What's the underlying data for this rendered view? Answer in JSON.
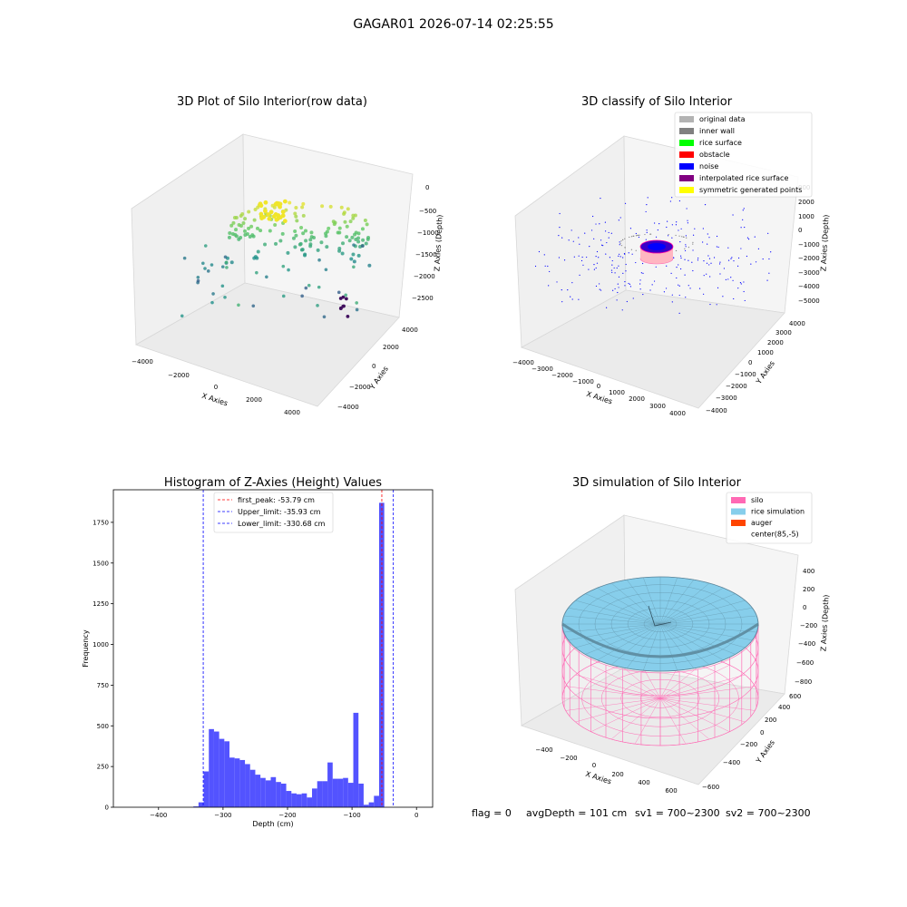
{
  "suptitle": "GAGAR01 2026-07-14 02:25:55",
  "footer": {
    "flag": "flag = 0",
    "avg_depth": "avgDepth = 101 cm",
    "sv1": "sv1 = 700~2300",
    "sv2": "sv2 = 700~2300"
  },
  "panel1": {
    "title": "3D Plot of Silo Interior(row data)",
    "xlabel": "X Axies",
    "ylabel": "Y Axies",
    "zlabel": "Z Axies (Depth)",
    "xticks": [
      "−4000",
      "−2000",
      "0",
      "2000",
      "4000"
    ],
    "yticks": [
      "−4000",
      "−2000",
      "0",
      "2000",
      "4000"
    ],
    "zticks": [
      "0",
      "−500",
      "−1000",
      "−1500",
      "−2000",
      "−2500"
    ]
  },
  "panel2": {
    "title": "3D classify of Silo Interior",
    "xlabel": "X Axies",
    "ylabel": "Y Axies",
    "zlabel": "Z Axies (Depth)",
    "xticks": [
      "−4000",
      "−3000",
      "−2000",
      "−1000",
      "0",
      "1000",
      "2000",
      "3000",
      "4000"
    ],
    "yticks": [
      "−4000",
      "−3000",
      "−2000",
      "−1000",
      "0",
      "1000",
      "2000",
      "3000",
      "4000"
    ],
    "zticks": [
      "2000",
      "1000",
      "0",
      "−1000",
      "−2000",
      "−3000",
      "−4000",
      "−5000"
    ],
    "zticks_partial": "000",
    "legend": [
      {
        "label": "original data",
        "color": "#b3b3b3"
      },
      {
        "label": "inner wall",
        "color": "#808080"
      },
      {
        "label": "rice surface",
        "color": "#00ff00"
      },
      {
        "label": "obstacle",
        "color": "#ff0000"
      },
      {
        "label": "noise",
        "color": "#0000ff"
      },
      {
        "label": "interpolated rice surface",
        "color": "#800080"
      },
      {
        "label": "symmetric generated points",
        "color": "#ffff00"
      }
    ]
  },
  "panel3": {
    "title": "3D simulation of Silo Interior",
    "xlabel": "X Axies",
    "ylabel": "Y Axies",
    "zlabel": "Z Axies (Depth)",
    "xticks": [
      "−400",
      "−200",
      "0",
      "200",
      "400",
      "600"
    ],
    "yticks": [
      "−600",
      "−400",
      "−200",
      "0",
      "200",
      "400",
      "600"
    ],
    "zticks": [
      "400",
      "200",
      "0",
      "−200",
      "−400",
      "−600",
      "−800"
    ],
    "legend": [
      {
        "label": "silo",
        "color": "#ff69b4"
      },
      {
        "label": "rice simulation",
        "color": "#87ceeb"
      },
      {
        "label": "auger",
        "color": "#ff4500"
      },
      {
        "label": "center(85,-5)",
        "color": "#ffffff"
      }
    ]
  },
  "chart_data": {
    "type": "bar",
    "title": "Histogram of Z-Axies (Height) Values",
    "xlabel": "Depth (cm)",
    "ylabel": "Frequency",
    "xlim": [
      -470,
      25
    ],
    "ylim": [
      0,
      1950
    ],
    "xticks": [
      -400,
      -300,
      -200,
      -100,
      0
    ],
    "yticks": [
      0,
      250,
      500,
      750,
      1000,
      1250,
      1500,
      1750
    ],
    "bar_color": "#4a4aff",
    "bin_width": 8,
    "bins": [
      {
        "x0": -346,
        "value": 5
      },
      {
        "x0": -338,
        "value": 30
      },
      {
        "x0": -330,
        "value": 220
      },
      {
        "x0": -322,
        "value": 480
      },
      {
        "x0": -314,
        "value": 465
      },
      {
        "x0": -306,
        "value": 420
      },
      {
        "x0": -298,
        "value": 405
      },
      {
        "x0": -290,
        "value": 305
      },
      {
        "x0": -282,
        "value": 300
      },
      {
        "x0": -274,
        "value": 290
      },
      {
        "x0": -266,
        "value": 265
      },
      {
        "x0": -258,
        "value": 230
      },
      {
        "x0": -250,
        "value": 200
      },
      {
        "x0": -242,
        "value": 180
      },
      {
        "x0": -234,
        "value": 165
      },
      {
        "x0": -226,
        "value": 185
      },
      {
        "x0": -218,
        "value": 155
      },
      {
        "x0": -210,
        "value": 145
      },
      {
        "x0": -202,
        "value": 100
      },
      {
        "x0": -194,
        "value": 85
      },
      {
        "x0": -186,
        "value": 80
      },
      {
        "x0": -178,
        "value": 85
      },
      {
        "x0": -170,
        "value": 60
      },
      {
        "x0": -162,
        "value": 115
      },
      {
        "x0": -154,
        "value": 160
      },
      {
        "x0": -146,
        "value": 160
      },
      {
        "x0": -138,
        "value": 275
      },
      {
        "x0": -130,
        "value": 175
      },
      {
        "x0": -122,
        "value": 175
      },
      {
        "x0": -114,
        "value": 180
      },
      {
        "x0": -106,
        "value": 150
      },
      {
        "x0": -98,
        "value": 580
      },
      {
        "x0": -90,
        "value": 145
      },
      {
        "x0": -82,
        "value": 15
      },
      {
        "x0": -74,
        "value": 30
      },
      {
        "x0": -66,
        "value": 70
      },
      {
        "x0": -58,
        "value": 1870
      }
    ],
    "vlines": [
      {
        "label": "first_peak: -53.79 cm",
        "x": -53.79,
        "color": "#ff0000"
      },
      {
        "label": "Upper_limit: -35.93 cm",
        "x": -35.93,
        "color": "#0000ff"
      },
      {
        "label": "Lower_limit: -330.68 cm",
        "x": -330.68,
        "color": "#0000ff"
      }
    ]
  }
}
